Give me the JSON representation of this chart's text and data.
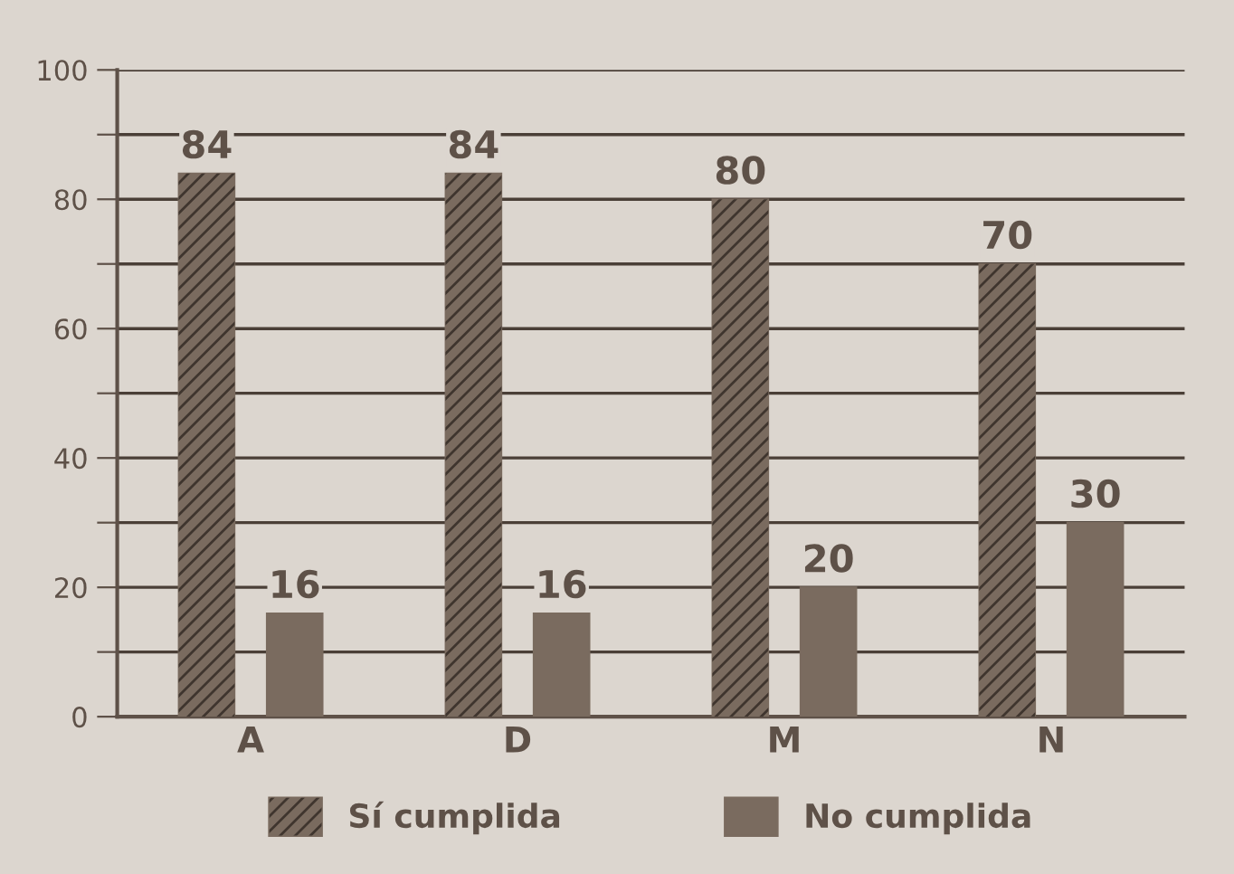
{
  "chart_data": {
    "type": "bar",
    "categories": [
      "A",
      "D",
      "M",
      "N"
    ],
    "series": [
      {
        "name": "Sí cumplida",
        "color": "#7a6b5f",
        "values": [
          84,
          84,
          80,
          70
        ]
      },
      {
        "name": "No cumplida",
        "color": "#7a6b5f",
        "values": [
          16,
          16,
          20,
          30
        ]
      }
    ],
    "ylim": [
      0,
      100
    ],
    "yticks": [
      0,
      {
        "value": 10,
        "label": null
      },
      20,
      {
        "value": 30,
        "label": null
      },
      40,
      {
        "value": 50,
        "label": null
      },
      60,
      {
        "value": 70,
        "label": null
      },
      80,
      {
        "value": 90,
        "label": null
      },
      100
    ],
    "grid": "y",
    "legend": "bottom",
    "data_labels": true
  }
}
